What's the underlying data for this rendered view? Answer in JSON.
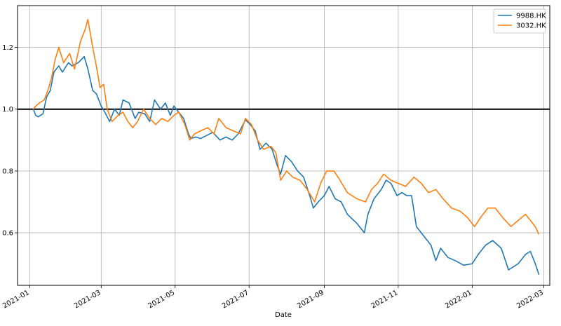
{
  "chart_data": {
    "type": "line",
    "title": "",
    "xlabel": "Date",
    "ylabel": "",
    "x_type": "date",
    "xlim": [
      "2020-12-22",
      "2022-03-06"
    ],
    "ylim": [
      0.43,
      1.335
    ],
    "grid": true,
    "legend_position": "top-right",
    "x_tick_labels": [
      "2021-01",
      "2021-03",
      "2021-05",
      "2021-07",
      "2021-09",
      "2021-11",
      "2022-01",
      "2022-03"
    ],
    "x_tick_dates": [
      "2021-01-01",
      "2021-03-01",
      "2021-05-01",
      "2021-07-01",
      "2021-09-01",
      "2021-11-01",
      "2022-01-01",
      "2022-03-01"
    ],
    "y_tick_labels": [
      "0.6",
      "0.8",
      "1.0",
      "1.2"
    ],
    "y_tick_values": [
      0.6,
      0.8,
      1.0,
      1.2
    ],
    "reference_line": {
      "y": 1.0,
      "color": "#000000"
    },
    "series": [
      {
        "name": "9988.HK",
        "color": "#1f77b4",
        "points": [
          [
            "2021-01-04",
            1.0
          ],
          [
            "2021-01-06",
            0.98
          ],
          [
            "2021-01-08",
            0.975
          ],
          [
            "2021-01-12",
            0.985
          ],
          [
            "2021-01-15",
            1.04
          ],
          [
            "2021-01-18",
            1.06
          ],
          [
            "2021-01-21",
            1.12
          ],
          [
            "2021-01-25",
            1.14
          ],
          [
            "2021-01-28",
            1.12
          ],
          [
            "2021-02-02",
            1.15
          ],
          [
            "2021-02-05",
            1.14
          ],
          [
            "2021-02-10",
            1.15
          ],
          [
            "2021-02-15",
            1.17
          ],
          [
            "2021-02-18",
            1.13
          ],
          [
            "2021-02-22",
            1.06
          ],
          [
            "2021-02-25",
            1.05
          ],
          [
            "2021-03-01",
            1.01
          ],
          [
            "2021-03-04",
            0.99
          ],
          [
            "2021-03-08",
            0.96
          ],
          [
            "2021-03-12",
            1.0
          ],
          [
            "2021-03-16",
            0.98
          ],
          [
            "2021-03-19",
            1.03
          ],
          [
            "2021-03-24",
            1.02
          ],
          [
            "2021-03-29",
            0.97
          ],
          [
            "2021-04-01",
            0.99
          ],
          [
            "2021-04-06",
            0.985
          ],
          [
            "2021-04-10",
            0.96
          ],
          [
            "2021-04-14",
            1.03
          ],
          [
            "2021-04-19",
            1.0
          ],
          [
            "2021-04-23",
            1.02
          ],
          [
            "2021-04-27",
            0.98
          ],
          [
            "2021-04-30",
            1.01
          ],
          [
            "2021-05-04",
            0.99
          ],
          [
            "2021-05-08",
            0.97
          ],
          [
            "2021-05-12",
            0.92
          ],
          [
            "2021-05-14",
            0.905
          ],
          [
            "2021-05-18",
            0.91
          ],
          [
            "2021-05-22",
            0.905
          ],
          [
            "2021-05-27",
            0.915
          ],
          [
            "2021-06-01",
            0.925
          ],
          [
            "2021-06-07",
            0.9
          ],
          [
            "2021-06-12",
            0.91
          ],
          [
            "2021-06-17",
            0.9
          ],
          [
            "2021-06-22",
            0.92
          ],
          [
            "2021-06-28",
            0.965
          ],
          [
            "2021-07-02",
            0.95
          ],
          [
            "2021-07-06",
            0.93
          ],
          [
            "2021-07-10",
            0.87
          ],
          [
            "2021-07-15",
            0.89
          ],
          [
            "2021-07-20",
            0.87
          ],
          [
            "2021-07-24",
            0.82
          ],
          [
            "2021-07-27",
            0.79
          ],
          [
            "2021-07-31",
            0.85
          ],
          [
            "2021-08-05",
            0.83
          ],
          [
            "2021-08-10",
            0.8
          ],
          [
            "2021-08-15",
            0.78
          ],
          [
            "2021-08-20",
            0.72
          ],
          [
            "2021-08-23",
            0.68
          ],
          [
            "2021-08-27",
            0.7
          ],
          [
            "2021-09-01",
            0.72
          ],
          [
            "2021-09-05",
            0.75
          ],
          [
            "2021-09-10",
            0.71
          ],
          [
            "2021-09-15",
            0.7
          ],
          [
            "2021-09-20",
            0.66
          ],
          [
            "2021-09-28",
            0.63
          ],
          [
            "2021-10-04",
            0.6
          ],
          [
            "2021-10-07",
            0.66
          ],
          [
            "2021-10-12",
            0.71
          ],
          [
            "2021-10-18",
            0.74
          ],
          [
            "2021-10-22",
            0.77
          ],
          [
            "2021-10-26",
            0.76
          ],
          [
            "2021-10-31",
            0.72
          ],
          [
            "2021-11-04",
            0.73
          ],
          [
            "2021-11-08",
            0.72
          ],
          [
            "2021-11-12",
            0.72
          ],
          [
            "2021-11-16",
            0.62
          ],
          [
            "2021-11-22",
            0.59
          ],
          [
            "2021-11-28",
            0.56
          ],
          [
            "2021-12-02",
            0.51
          ],
          [
            "2021-12-06",
            0.55
          ],
          [
            "2021-12-12",
            0.52
          ],
          [
            "2021-12-18",
            0.51
          ],
          [
            "2021-12-25",
            0.495
          ],
          [
            "2022-01-01",
            0.5
          ],
          [
            "2022-01-06",
            0.53
          ],
          [
            "2022-01-12",
            0.56
          ],
          [
            "2022-01-18",
            0.575
          ],
          [
            "2022-01-25",
            0.55
          ],
          [
            "2022-01-31",
            0.48
          ],
          [
            "2022-02-08",
            0.5
          ],
          [
            "2022-02-14",
            0.53
          ],
          [
            "2022-02-18",
            0.54
          ],
          [
            "2022-02-22",
            0.5
          ],
          [
            "2022-02-25",
            0.465
          ]
        ]
      },
      {
        "name": "3032.HK",
        "color": "#ff7f0e",
        "points": [
          [
            "2021-01-04",
            1.0
          ],
          [
            "2021-01-06",
            1.01
          ],
          [
            "2021-01-09",
            1.02
          ],
          [
            "2021-01-13",
            1.03
          ],
          [
            "2021-01-16",
            1.06
          ],
          [
            "2021-01-19",
            1.1
          ],
          [
            "2021-01-22",
            1.16
          ],
          [
            "2021-01-25",
            1.2
          ],
          [
            "2021-01-29",
            1.15
          ],
          [
            "2021-02-03",
            1.18
          ],
          [
            "2021-02-07",
            1.13
          ],
          [
            "2021-02-12",
            1.22
          ],
          [
            "2021-02-16",
            1.26
          ],
          [
            "2021-02-18",
            1.29
          ],
          [
            "2021-02-22",
            1.2
          ],
          [
            "2021-02-25",
            1.14
          ],
          [
            "2021-02-28",
            1.07
          ],
          [
            "2021-03-03",
            1.08
          ],
          [
            "2021-03-06",
            1.0
          ],
          [
            "2021-03-10",
            0.96
          ],
          [
            "2021-03-15",
            0.98
          ],
          [
            "2021-03-19",
            0.99
          ],
          [
            "2021-03-23",
            0.96
          ],
          [
            "2021-03-27",
            0.94
          ],
          [
            "2021-03-31",
            0.96
          ],
          [
            "2021-04-05",
            1.0
          ],
          [
            "2021-04-10",
            0.97
          ],
          [
            "2021-04-15",
            0.95
          ],
          [
            "2021-04-20",
            0.97
          ],
          [
            "2021-04-25",
            0.96
          ],
          [
            "2021-04-30",
            0.98
          ],
          [
            "2021-05-04",
            0.99
          ],
          [
            "2021-05-09",
            0.95
          ],
          [
            "2021-05-13",
            0.9
          ],
          [
            "2021-05-17",
            0.92
          ],
          [
            "2021-05-22",
            0.93
          ],
          [
            "2021-05-28",
            0.94
          ],
          [
            "2021-06-02",
            0.92
          ],
          [
            "2021-06-06",
            0.97
          ],
          [
            "2021-06-12",
            0.94
          ],
          [
            "2021-06-18",
            0.93
          ],
          [
            "2021-06-24",
            0.92
          ],
          [
            "2021-06-28",
            0.97
          ],
          [
            "2021-07-03",
            0.95
          ],
          [
            "2021-07-08",
            0.9
          ],
          [
            "2021-07-13",
            0.87
          ],
          [
            "2021-07-19",
            0.88
          ],
          [
            "2021-07-23",
            0.86
          ],
          [
            "2021-07-27",
            0.77
          ],
          [
            "2021-08-01",
            0.8
          ],
          [
            "2021-08-06",
            0.78
          ],
          [
            "2021-08-12",
            0.77
          ],
          [
            "2021-08-18",
            0.74
          ],
          [
            "2021-08-24",
            0.7
          ],
          [
            "2021-08-29",
            0.76
          ],
          [
            "2021-09-03",
            0.8
          ],
          [
            "2021-09-09",
            0.8
          ],
          [
            "2021-09-14",
            0.77
          ],
          [
            "2021-09-20",
            0.73
          ],
          [
            "2021-09-28",
            0.71
          ],
          [
            "2021-10-05",
            0.7
          ],
          [
            "2021-10-10",
            0.74
          ],
          [
            "2021-10-15",
            0.76
          ],
          [
            "2021-10-20",
            0.79
          ],
          [
            "2021-10-26",
            0.77
          ],
          [
            "2021-11-01",
            0.76
          ],
          [
            "2021-11-07",
            0.75
          ],
          [
            "2021-11-14",
            0.78
          ],
          [
            "2021-11-20",
            0.76
          ],
          [
            "2021-11-26",
            0.73
          ],
          [
            "2021-12-02",
            0.74
          ],
          [
            "2021-12-08",
            0.71
          ],
          [
            "2021-12-15",
            0.68
          ],
          [
            "2021-12-22",
            0.67
          ],
          [
            "2021-12-28",
            0.65
          ],
          [
            "2022-01-03",
            0.62
          ],
          [
            "2022-01-08",
            0.65
          ],
          [
            "2022-01-14",
            0.68
          ],
          [
            "2022-01-20",
            0.68
          ],
          [
            "2022-01-26",
            0.65
          ],
          [
            "2022-02-02",
            0.62
          ],
          [
            "2022-02-08",
            0.64
          ],
          [
            "2022-02-14",
            0.66
          ],
          [
            "2022-02-18",
            0.64
          ],
          [
            "2022-02-22",
            0.62
          ],
          [
            "2022-02-25",
            0.595
          ]
        ]
      }
    ]
  }
}
